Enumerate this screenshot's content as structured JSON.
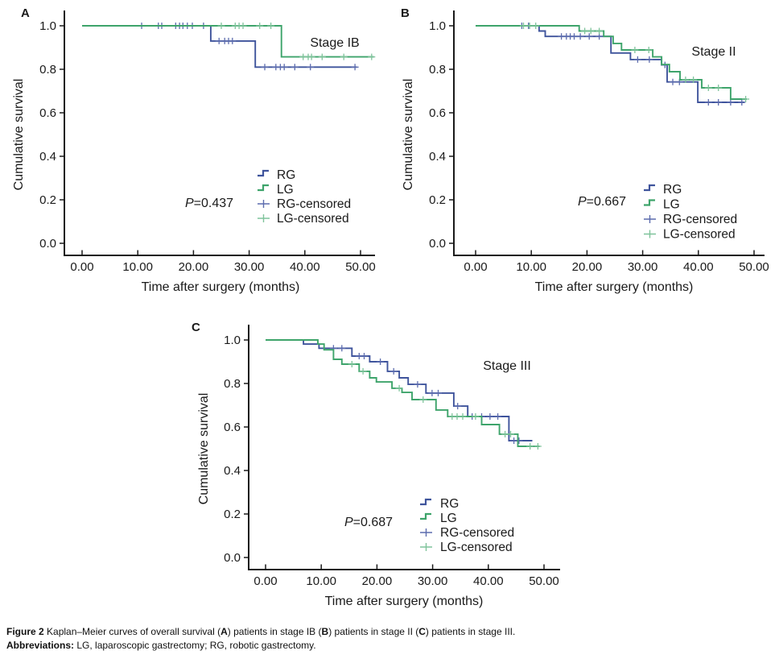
{
  "figure": {
    "caption_line1_segments": [
      {
        "t": "Figure 2 ",
        "b": 1
      },
      {
        "t": "Kaplan–Meier curves of overall survival (",
        "b": 0
      },
      {
        "t": "A",
        "b": 1
      },
      {
        "t": ") patients in stage IB (",
        "b": 0
      },
      {
        "t": "B",
        "b": 1
      },
      {
        "t": ") patients in stage II (",
        "b": 0
      },
      {
        "t": "C",
        "b": 1
      },
      {
        "t": ") patients in stage III.",
        "b": 0
      }
    ],
    "caption_line2_segments": [
      {
        "t": "Abbreviations: ",
        "b": 1
      },
      {
        "t": "LG, laparoscopic gastrectomy; RG, robotic gastrectomy.",
        "b": 0
      }
    ]
  },
  "colors": {
    "rg": "#3f549c",
    "lg": "#3ea46b",
    "rg_censor": "#5c6cae",
    "lg_censor": "#7fc39b",
    "axis": "#1a1a1a",
    "text": "#1a1a1a"
  },
  "chart_data": [
    {
      "panel_label": "A",
      "type": "line",
      "subtype": "kaplan-meier-step",
      "stage_label": "Stage IB",
      "p_value": {
        "var": "P",
        "rest": "=0.437"
      },
      "xlabel": "Time after surgery (months)",
      "ylabel": "Cumulative survival",
      "x_ticks": [
        "0.00",
        "10.00",
        "20.00",
        "30.00",
        "40.00",
        "50.00"
      ],
      "y_ticks": [
        "0.0",
        "0.2",
        "0.4",
        "0.6",
        "0.8",
        "1.0"
      ],
      "xlim": [
        0,
        52.5
      ],
      "ylim": [
        0,
        1.05
      ],
      "grid": false,
      "legend_position": "lower right",
      "legend_items": [
        {
          "label": "RG",
          "glyph": "step",
          "color_key": "rg"
        },
        {
          "label": "LG",
          "glyph": "step",
          "color_key": "lg"
        },
        {
          "label": "RG-censored",
          "glyph": "plus",
          "color_key": "rg_censor"
        },
        {
          "label": "LG-censored",
          "glyph": "plus",
          "color_key": "lg_censor"
        }
      ],
      "series": [
        {
          "name": "RG",
          "color_key": "rg",
          "steps": [
            [
              0,
              1
            ],
            [
              23.1,
              1
            ],
            [
              23.1,
              0.93
            ],
            [
              31.1,
              0.93
            ],
            [
              31.1,
              0.81
            ],
            [
              49.3,
              0.81
            ]
          ],
          "censored": [
            [
              10.7,
              1
            ],
            [
              13.7,
              1
            ],
            [
              14.3,
              1
            ],
            [
              16.8,
              1
            ],
            [
              17.5,
              1
            ],
            [
              18.1,
              1
            ],
            [
              18.9,
              1
            ],
            [
              19.8,
              1
            ],
            [
              21.8,
              1
            ],
            [
              24.6,
              0.93
            ],
            [
              25.6,
              0.93
            ],
            [
              26.3,
              0.93
            ],
            [
              27.0,
              0.93
            ],
            [
              32.8,
              0.81
            ],
            [
              34.8,
              0.81
            ],
            [
              35.6,
              0.81
            ],
            [
              36.3,
              0.81
            ],
            [
              38.2,
              0.81
            ],
            [
              41.0,
              0.81
            ],
            [
              49.0,
              0.81
            ]
          ]
        },
        {
          "name": "LG",
          "color_key": "lg",
          "steps": [
            [
              0,
              1
            ],
            [
              35.8,
              1
            ],
            [
              35.8,
              0.857
            ],
            [
              52.4,
              0.857
            ]
          ],
          "censored": [
            [
              25.0,
              1
            ],
            [
              27.5,
              1
            ],
            [
              28.2,
              1
            ],
            [
              28.9,
              1
            ],
            [
              31.9,
              1
            ],
            [
              33.9,
              1
            ],
            [
              39.7,
              0.857
            ],
            [
              40.6,
              0.857
            ],
            [
              41.2,
              0.857
            ],
            [
              43.1,
              0.857
            ],
            [
              47.0,
              0.857
            ],
            [
              52.0,
              0.857
            ]
          ]
        }
      ]
    },
    {
      "panel_label": "B",
      "type": "line",
      "subtype": "kaplan-meier-step",
      "stage_label": "Stage II",
      "p_value": {
        "var": "P",
        "rest": "=0.667"
      },
      "xlabel": "Time after surgery (months)",
      "ylabel": "Cumulative survival",
      "x_ticks": [
        "0.00",
        "10.00",
        "20.00",
        "30.00",
        "40.00",
        "50.00"
      ],
      "y_ticks": [
        "0.0",
        "0.2",
        "0.4",
        "0.6",
        "0.8",
        "1.0"
      ],
      "xlim": [
        0,
        52.5
      ],
      "ylim": [
        0,
        1.05
      ],
      "grid": false,
      "legend_position": "lower right",
      "legend_items": [
        {
          "label": "RG",
          "glyph": "step",
          "color_key": "rg"
        },
        {
          "label": "LG",
          "glyph": "step",
          "color_key": "lg"
        },
        {
          "label": "RG-censored",
          "glyph": "plus",
          "color_key": "rg_censor"
        },
        {
          "label": "LG-censored",
          "glyph": "plus",
          "color_key": "lg_censor"
        }
      ],
      "series": [
        {
          "name": "RG",
          "color_key": "rg",
          "steps": [
            [
              0,
              1
            ],
            [
              11.4,
              1
            ],
            [
              11.4,
              0.976
            ],
            [
              12.5,
              0.976
            ],
            [
              12.5,
              0.951
            ],
            [
              24.3,
              0.951
            ],
            [
              24.3,
              0.875
            ],
            [
              27.8,
              0.875
            ],
            [
              27.8,
              0.845
            ],
            [
              33.4,
              0.845
            ],
            [
              33.4,
              0.82
            ],
            [
              34.4,
              0.82
            ],
            [
              34.4,
              0.742
            ],
            [
              39.9,
              0.742
            ],
            [
              39.9,
              0.648
            ],
            [
              48.3,
              0.648
            ]
          ],
          "censored": [
            [
              8.3,
              1
            ],
            [
              9.5,
              1
            ],
            [
              15.4,
              0.951
            ],
            [
              16.3,
              0.951
            ],
            [
              17.0,
              0.951
            ],
            [
              17.7,
              0.951
            ],
            [
              18.8,
              0.951
            ],
            [
              20.4,
              0.951
            ],
            [
              22.2,
              0.951
            ],
            [
              29.1,
              0.845
            ],
            [
              31.2,
              0.845
            ],
            [
              34.0,
              0.82
            ],
            [
              35.4,
              0.742
            ],
            [
              36.6,
              0.742
            ],
            [
              41.8,
              0.648
            ],
            [
              43.6,
              0.648
            ],
            [
              45.8,
              0.648
            ],
            [
              47.8,
              0.648
            ]
          ]
        },
        {
          "name": "LG",
          "color_key": "lg",
          "steps": [
            [
              0,
              1
            ],
            [
              18.6,
              1
            ],
            [
              18.6,
              0.976
            ],
            [
              23.0,
              0.976
            ],
            [
              23.0,
              0.951
            ],
            [
              24.7,
              0.951
            ],
            [
              24.7,
              0.919
            ],
            [
              26.2,
              0.919
            ],
            [
              26.2,
              0.889
            ],
            [
              31.8,
              0.889
            ],
            [
              31.8,
              0.857
            ],
            [
              33.4,
              0.857
            ],
            [
              33.4,
              0.822
            ],
            [
              34.8,
              0.822
            ],
            [
              34.8,
              0.789
            ],
            [
              36.7,
              0.789
            ],
            [
              36.7,
              0.752
            ],
            [
              40.6,
              0.752
            ],
            [
              40.6,
              0.715
            ],
            [
              45.8,
              0.715
            ],
            [
              45.8,
              0.663
            ],
            [
              48.7,
              0.663
            ]
          ],
          "censored": [
            [
              8.6,
              1
            ],
            [
              9.7,
              1
            ],
            [
              10.8,
              1
            ],
            [
              19.6,
              0.976
            ],
            [
              20.7,
              0.976
            ],
            [
              22.2,
              0.976
            ],
            [
              28.6,
              0.889
            ],
            [
              31.1,
              0.889
            ],
            [
              37.7,
              0.752
            ],
            [
              39.1,
              0.752
            ],
            [
              41.8,
              0.715
            ],
            [
              43.6,
              0.715
            ],
            [
              48.5,
              0.663
            ]
          ]
        }
      ]
    },
    {
      "panel_label": "C",
      "type": "line",
      "subtype": "kaplan-meier-step",
      "stage_label": "Stage III",
      "p_value": {
        "var": "P",
        "rest": "=0.687"
      },
      "xlabel": "Time after surgery (months)",
      "ylabel": "Cumulative survival",
      "x_ticks": [
        "0.00",
        "10.00",
        "20.00",
        "30.00",
        "40.00",
        "50.00"
      ],
      "y_ticks": [
        "0.0",
        "0.2",
        "0.4",
        "0.6",
        "0.8",
        "1.0"
      ],
      "xlim": [
        0,
        52.5
      ],
      "ylim": [
        0,
        1.05
      ],
      "grid": false,
      "legend_position": "lower right",
      "legend_items": [
        {
          "label": "RG",
          "glyph": "step",
          "color_key": "rg"
        },
        {
          "label": "LG",
          "glyph": "step",
          "color_key": "lg"
        },
        {
          "label": "RG-censored",
          "glyph": "plus",
          "color_key": "rg_censor"
        },
        {
          "label": "LG-censored",
          "glyph": "plus",
          "color_key": "lg_censor"
        }
      ],
      "series": [
        {
          "name": "RG",
          "color_key": "rg",
          "steps": [
            [
              0,
              1
            ],
            [
              6.8,
              1
            ],
            [
              6.8,
              0.981
            ],
            [
              9.6,
              0.981
            ],
            [
              9.6,
              0.962
            ],
            [
              15.5,
              0.962
            ],
            [
              15.5,
              0.926
            ],
            [
              18.7,
              0.926
            ],
            [
              18.7,
              0.9
            ],
            [
              21.9,
              0.9
            ],
            [
              21.9,
              0.856
            ],
            [
              24.0,
              0.856
            ],
            [
              24.0,
              0.826
            ],
            [
              25.6,
              0.826
            ],
            [
              25.6,
              0.796
            ],
            [
              28.8,
              0.796
            ],
            [
              28.8,
              0.756
            ],
            [
              33.8,
              0.756
            ],
            [
              33.8,
              0.696
            ],
            [
              36.3,
              0.696
            ],
            [
              36.3,
              0.648
            ],
            [
              43.7,
              0.648
            ],
            [
              43.7,
              0.537
            ],
            [
              47.9,
              0.537
            ]
          ],
          "censored": [
            [
              12.2,
              0.962
            ],
            [
              13.7,
              0.962
            ],
            [
              16.8,
              0.926
            ],
            [
              17.7,
              0.926
            ],
            [
              20.6,
              0.9
            ],
            [
              23.0,
              0.856
            ],
            [
              27.3,
              0.796
            ],
            [
              29.9,
              0.756
            ],
            [
              31.0,
              0.756
            ],
            [
              34.5,
              0.696
            ],
            [
              37.1,
              0.648
            ],
            [
              38.8,
              0.648
            ],
            [
              40.3,
              0.648
            ],
            [
              41.7,
              0.648
            ],
            [
              44.6,
              0.537
            ],
            [
              45.5,
              0.537
            ]
          ]
        },
        {
          "name": "LG",
          "color_key": "lg",
          "steps": [
            [
              0,
              1
            ],
            [
              9.4,
              1
            ],
            [
              9.4,
              0.981
            ],
            [
              10.5,
              0.981
            ],
            [
              10.5,
              0.955
            ],
            [
              12.2,
              0.955
            ],
            [
              12.2,
              0.911
            ],
            [
              13.7,
              0.911
            ],
            [
              13.7,
              0.889
            ],
            [
              16.8,
              0.889
            ],
            [
              16.8,
              0.856
            ],
            [
              18.7,
              0.856
            ],
            [
              18.7,
              0.826
            ],
            [
              19.9,
              0.826
            ],
            [
              19.9,
              0.807
            ],
            [
              22.7,
              0.807
            ],
            [
              22.7,
              0.778
            ],
            [
              24.5,
              0.778
            ],
            [
              24.5,
              0.759
            ],
            [
              26.3,
              0.759
            ],
            [
              26.3,
              0.726
            ],
            [
              30.6,
              0.726
            ],
            [
              30.6,
              0.678
            ],
            [
              32.7,
              0.678
            ],
            [
              32.7,
              0.648
            ],
            [
              38.8,
              0.648
            ],
            [
              38.8,
              0.611
            ],
            [
              42.0,
              0.611
            ],
            [
              42.0,
              0.567
            ],
            [
              45.3,
              0.567
            ],
            [
              45.3,
              0.511
            ],
            [
              49.2,
              0.511
            ]
          ],
          "censored": [
            [
              15.5,
              0.889
            ],
            [
              17.5,
              0.856
            ],
            [
              24.0,
              0.778
            ],
            [
              28.3,
              0.726
            ],
            [
              33.5,
              0.648
            ],
            [
              34.4,
              0.648
            ],
            [
              35.4,
              0.648
            ],
            [
              37.7,
              0.648
            ],
            [
              43.0,
              0.567
            ],
            [
              44.0,
              0.567
            ],
            [
              47.5,
              0.511
            ],
            [
              48.9,
              0.511
            ]
          ]
        }
      ]
    }
  ]
}
